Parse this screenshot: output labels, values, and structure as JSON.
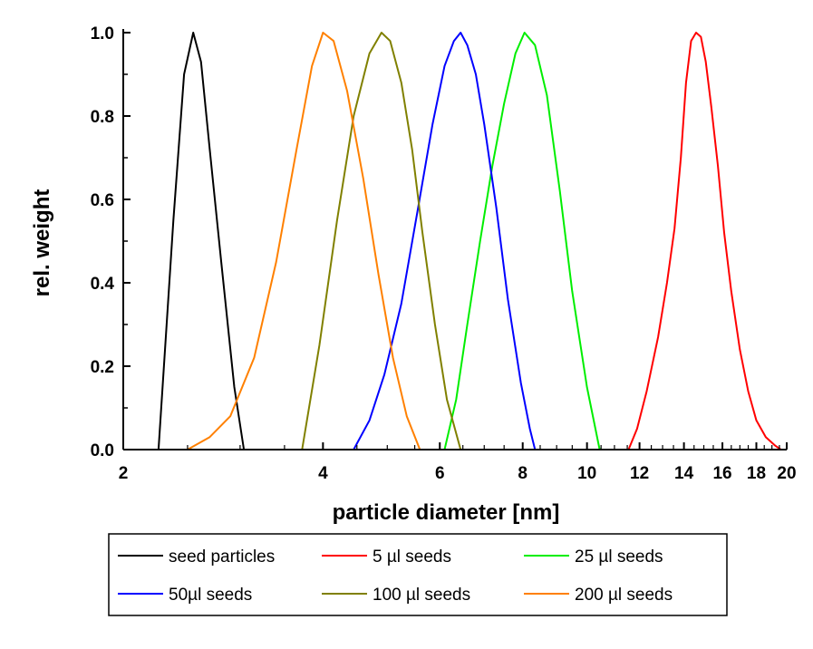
{
  "chart_data": {
    "type": "line",
    "title": "",
    "xlabel": "particle diameter [nm]",
    "ylabel": "rel. weight",
    "x_scale": "log",
    "xlim": [
      2,
      20
    ],
    "ylim": [
      0,
      1
    ],
    "x_ticks": [
      2,
      4,
      6,
      8,
      10,
      12,
      14,
      16,
      18,
      20
    ],
    "x_tick_labels": [
      "2",
      "4",
      "6",
      "8",
      "10",
      "12",
      "14",
      "16",
      "18",
      "20"
    ],
    "y_ticks": [
      0,
      0.2,
      0.4,
      0.6,
      0.8,
      1.0
    ],
    "y_tick_labels": [
      "0.0",
      "0.2",
      "0.4",
      "0.6",
      "0.8",
      "1.0"
    ],
    "grid": false,
    "legend_position": "bottom",
    "series": [
      {
        "name": "seed particles",
        "color": "#000000",
        "x": [
          2.26,
          2.38,
          2.47,
          2.55,
          2.62,
          2.7,
          2.81,
          2.94,
          3.04
        ],
        "y": [
          0.0,
          0.55,
          0.9,
          1.0,
          0.93,
          0.72,
          0.45,
          0.15,
          0.0
        ]
      },
      {
        "name": "5 µl seeds",
        "color": "#ff0000",
        "x": [
          11.55,
          11.9,
          12.3,
          12.8,
          13.2,
          13.55,
          13.85,
          14.1,
          14.35,
          14.6,
          14.85,
          15.1,
          15.4,
          15.75,
          16.1,
          16.5,
          17.0,
          17.5,
          18.0,
          18.6,
          19.2,
          19.6
        ],
        "y": [
          0.0,
          0.05,
          0.14,
          0.27,
          0.4,
          0.53,
          0.7,
          0.88,
          0.98,
          1.0,
          0.99,
          0.93,
          0.82,
          0.68,
          0.52,
          0.38,
          0.24,
          0.14,
          0.07,
          0.03,
          0.01,
          0.0
        ]
      },
      {
        "name": "25 µl seeds",
        "color": "#00ee00",
        "x": [
          6.1,
          6.35,
          6.6,
          6.9,
          7.2,
          7.5,
          7.8,
          8.05,
          8.35,
          8.7,
          9.1,
          9.5,
          10.0,
          10.45
        ],
        "y": [
          0.0,
          0.12,
          0.3,
          0.5,
          0.68,
          0.83,
          0.95,
          1.0,
          0.97,
          0.85,
          0.62,
          0.38,
          0.15,
          0.0
        ]
      },
      {
        "name": "50µl seeds",
        "color": "#0000ff",
        "x": [
          4.45,
          4.7,
          4.95,
          5.25,
          5.55,
          5.85,
          6.1,
          6.3,
          6.45,
          6.6,
          6.8,
          7.0,
          7.3,
          7.6,
          7.95,
          8.2,
          8.35
        ],
        "y": [
          0.0,
          0.07,
          0.18,
          0.35,
          0.57,
          0.78,
          0.92,
          0.98,
          1.0,
          0.97,
          0.9,
          0.78,
          0.58,
          0.36,
          0.16,
          0.05,
          0.0
        ]
      },
      {
        "name": "100 µl seeds",
        "color": "#808000",
        "x": [
          3.72,
          3.95,
          4.2,
          4.45,
          4.7,
          4.9,
          5.05,
          5.25,
          5.45,
          5.65,
          5.9,
          6.15,
          6.45
        ],
        "y": [
          0.0,
          0.25,
          0.55,
          0.8,
          0.95,
          1.0,
          0.98,
          0.88,
          0.72,
          0.52,
          0.3,
          0.12,
          0.0
        ]
      },
      {
        "name": "200 µl seeds",
        "color": "#ff8000",
        "x": [
          2.5,
          2.7,
          2.9,
          3.15,
          3.4,
          3.65,
          3.85,
          4.0,
          4.15,
          4.35,
          4.6,
          4.85,
          5.1,
          5.35,
          5.6
        ],
        "y": [
          0.0,
          0.03,
          0.08,
          0.22,
          0.45,
          0.72,
          0.92,
          1.0,
          0.98,
          0.86,
          0.65,
          0.42,
          0.22,
          0.08,
          0.0
        ]
      }
    ]
  }
}
